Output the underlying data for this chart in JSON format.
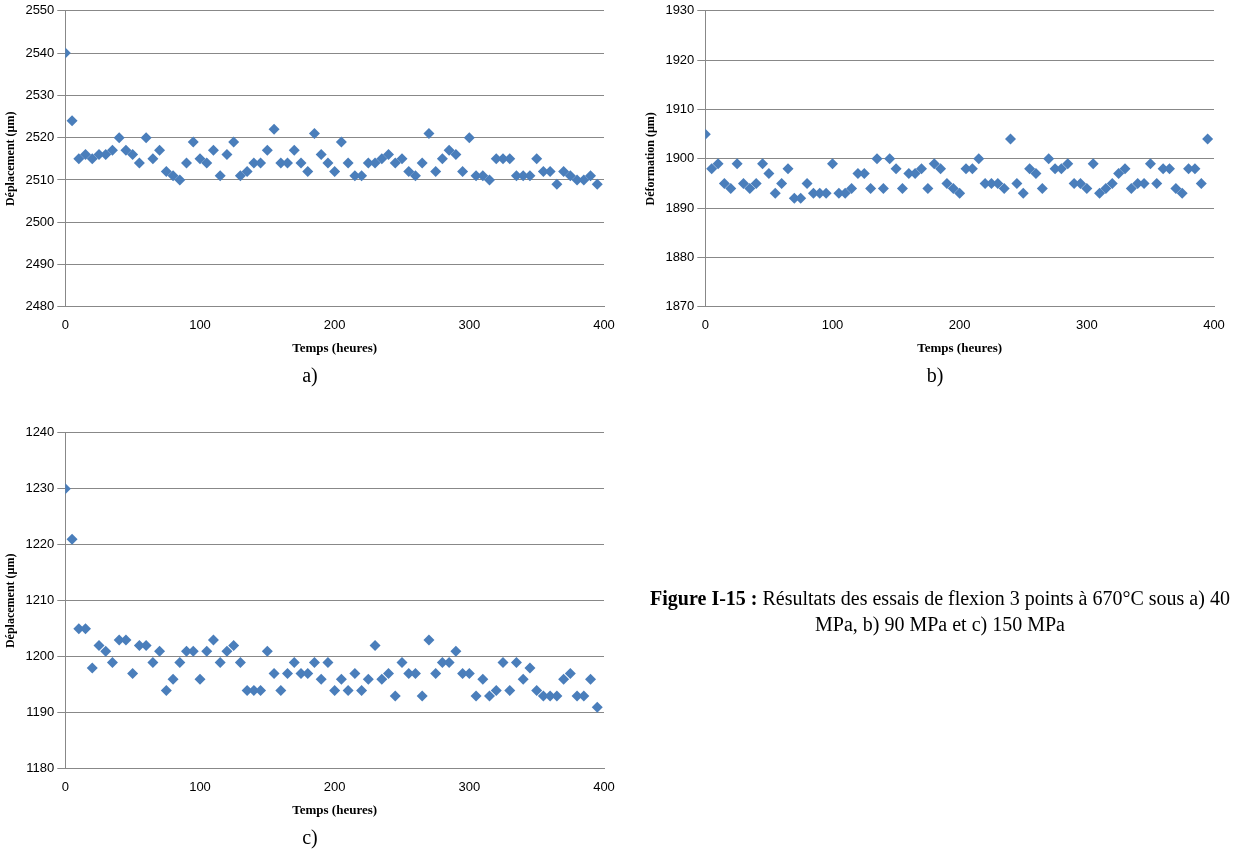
{
  "chart_data": [
    {
      "type": "scatter",
      "xlabel": "Temps (heures)",
      "ylabel": "Déplacement (µm)",
      "annotations": [
        "a)"
      ],
      "marker": "diamond",
      "grid": "y",
      "legend": false,
      "xlim": [
        0,
        400
      ],
      "xticks": [
        0,
        100,
        200,
        300,
        400
      ],
      "ylim": [
        2480,
        2550
      ],
      "yticks": [
        2480,
        2490,
        2500,
        2510,
        2520,
        2530,
        2540,
        2550
      ],
      "series": [
        {
          "color": "#4a7ebb",
          "x": [
            0,
            5,
            10,
            15,
            20,
            25,
            30,
            35,
            40,
            45,
            50,
            55,
            60,
            65,
            70,
            75,
            80,
            85,
            90,
            95,
            100,
            105,
            110,
            115,
            120,
            125,
            130,
            135,
            140,
            145,
            150,
            155,
            160,
            165,
            170,
            175,
            180,
            185,
            190,
            195,
            200,
            205,
            210,
            215,
            220,
            225,
            230,
            235,
            240,
            245,
            250,
            255,
            260,
            265,
            270,
            275,
            280,
            285,
            290,
            295,
            300,
            305,
            310,
            315,
            320,
            325,
            330,
            335,
            340,
            345,
            350,
            355,
            360,
            365,
            370,
            375,
            380,
            385,
            390,
            395
          ],
          "values": [
            2540,
            2524,
            2515,
            2516,
            2515,
            2516,
            2516,
            2517,
            2520,
            2517,
            2516,
            2514,
            2520,
            2515,
            2517,
            2512,
            2511,
            2510,
            2514,
            2519,
            2515,
            2514,
            2517,
            2511,
            2516,
            2519,
            2511,
            2512,
            2514,
            2514,
            2517,
            2522,
            2514,
            2514,
            2517,
            2514,
            2512,
            2521,
            2516,
            2514,
            2512,
            2519,
            2514,
            2511,
            2511,
            2514,
            2514,
            2515,
            2516,
            2514,
            2515,
            2512,
            2511,
            2514,
            2521,
            2512,
            2515,
            2517,
            2516,
            2512,
            2520,
            2511,
            2511,
            2510,
            2515,
            2515,
            2515,
            2511,
            2511,
            2511,
            2515,
            2512,
            2512,
            2509,
            2512,
            2511,
            2510,
            2510,
            2511,
            2509
          ]
        }
      ]
    },
    {
      "type": "scatter",
      "xlabel": "Temps (heures)",
      "ylabel": "Déformation (µm)",
      "annotations": [
        "b)"
      ],
      "marker": "diamond",
      "grid": "y",
      "legend": false,
      "xlim": [
        0,
        400
      ],
      "xticks": [
        0,
        100,
        200,
        300,
        400
      ],
      "ylim": [
        1870,
        1930
      ],
      "yticks": [
        1870,
        1880,
        1890,
        1900,
        1910,
        1920,
        1930
      ],
      "series": [
        {
          "color": "#4a7ebb",
          "x": [
            0,
            5,
            10,
            15,
            20,
            25,
            30,
            35,
            40,
            45,
            50,
            55,
            60,
            65,
            70,
            75,
            80,
            85,
            90,
            95,
            100,
            105,
            110,
            115,
            120,
            125,
            130,
            135,
            140,
            145,
            150,
            155,
            160,
            165,
            170,
            175,
            180,
            185,
            190,
            195,
            200,
            205,
            210,
            215,
            220,
            225,
            230,
            235,
            240,
            245,
            250,
            255,
            260,
            265,
            270,
            275,
            280,
            285,
            290,
            295,
            300,
            305,
            310,
            315,
            320,
            325,
            330,
            335,
            340,
            345,
            350,
            355,
            360,
            365,
            370,
            375,
            380,
            385,
            390,
            395
          ],
          "values": [
            1905,
            1898,
            1899,
            1895,
            1894,
            1899,
            1895,
            1894,
            1895,
            1899,
            1897,
            1893,
            1895,
            1898,
            1892,
            1892,
            1895,
            1893,
            1893,
            1893,
            1899,
            1893,
            1893,
            1894,
            1897,
            1897,
            1894,
            1900,
            1894,
            1900,
            1898,
            1894,
            1897,
            1897,
            1898,
            1894,
            1899,
            1898,
            1895,
            1894,
            1893,
            1898,
            1898,
            1900,
            1895,
            1895,
            1895,
            1894,
            1904,
            1895,
            1893,
            1898,
            1897,
            1894,
            1900,
            1898,
            1898,
            1899,
            1895,
            1895,
            1894,
            1899,
            1893,
            1894,
            1895,
            1897,
            1898,
            1894,
            1895,
            1895,
            1899,
            1895,
            1898,
            1898,
            1894,
            1893,
            1898,
            1898,
            1895,
            1904
          ]
        }
      ]
    },
    {
      "type": "scatter",
      "xlabel": "Temps (heures)",
      "ylabel": "Déplacement (µm)",
      "annotations": [
        "c)"
      ],
      "marker": "diamond",
      "grid": "y",
      "legend": false,
      "xlim": [
        0,
        400
      ],
      "xticks": [
        0,
        100,
        200,
        300,
        400
      ],
      "ylim": [
        1180,
        1240
      ],
      "yticks": [
        1180,
        1190,
        1200,
        1210,
        1220,
        1230,
        1240
      ],
      "series": [
        {
          "color": "#4a7ebb",
          "x": [
            0,
            5,
            10,
            15,
            20,
            25,
            30,
            35,
            40,
            45,
            50,
            55,
            60,
            65,
            70,
            75,
            80,
            85,
            90,
            95,
            100,
            105,
            110,
            115,
            120,
            125,
            130,
            135,
            140,
            145,
            150,
            155,
            160,
            165,
            170,
            175,
            180,
            185,
            190,
            195,
            200,
            205,
            210,
            215,
            220,
            225,
            230,
            235,
            240,
            245,
            250,
            255,
            260,
            265,
            270,
            275,
            280,
            285,
            290,
            295,
            300,
            305,
            310,
            315,
            320,
            325,
            330,
            335,
            340,
            345,
            350,
            355,
            360,
            365,
            370,
            375,
            380,
            385,
            390,
            395
          ],
          "values": [
            1230,
            1221,
            1205,
            1205,
            1198,
            1202,
            1201,
            1199,
            1203,
            1203,
            1197,
            1202,
            1202,
            1199,
            1201,
            1194,
            1196,
            1199,
            1201,
            1201,
            1196,
            1201,
            1203,
            1199,
            1201,
            1202,
            1199,
            1194,
            1194,
            1194,
            1201,
            1197,
            1194,
            1197,
            1199,
            1197,
            1197,
            1199,
            1196,
            1199,
            1194,
            1196,
            1194,
            1197,
            1194,
            1196,
            1202,
            1196,
            1197,
            1193,
            1199,
            1197,
            1197,
            1193,
            1203,
            1197,
            1199,
            1199,
            1201,
            1197,
            1197,
            1193,
            1196,
            1193,
            1194,
            1199,
            1194,
            1199,
            1196,
            1198,
            1194,
            1193,
            1193,
            1193,
            1196,
            1197,
            1193,
            1193,
            1196,
            1191
          ]
        }
      ]
    },
    {
      "type": "other",
      "title": "Figure I-15 :",
      "subtitle": "Résultats des essais de flexion 3 points à 670°C sous a) 40 MPa, b) 90 MPa et c) 150 MPa"
    }
  ]
}
